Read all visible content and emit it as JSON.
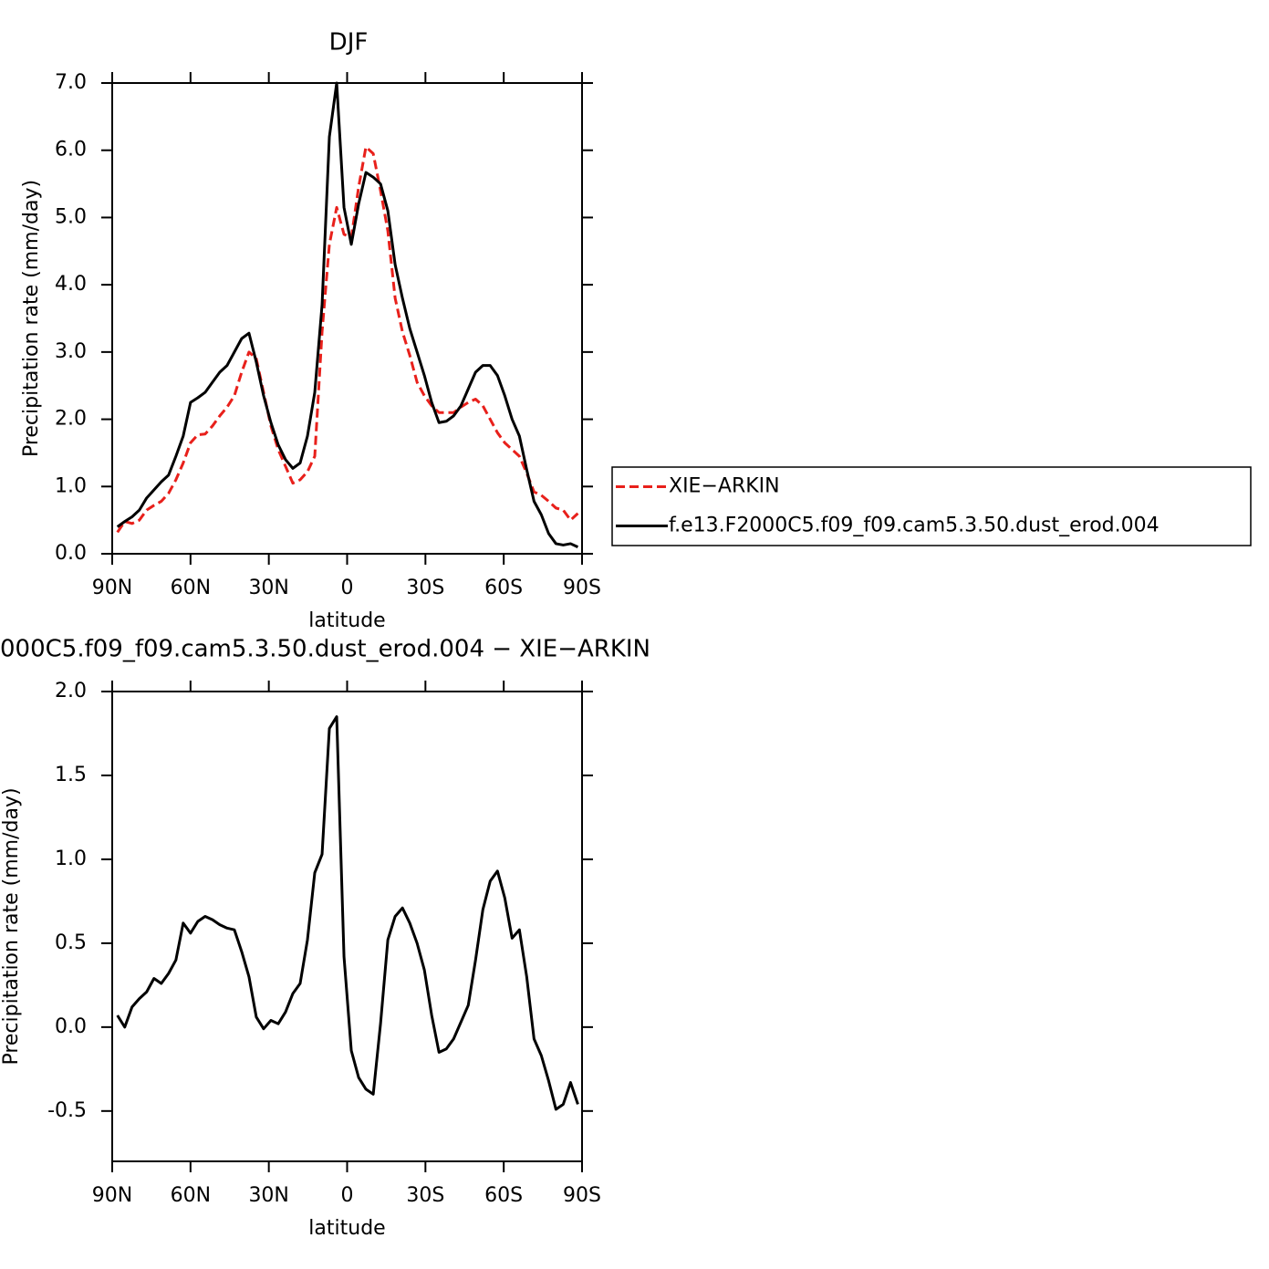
{
  "chart_data": [
    {
      "type": "line",
      "title": "DJF",
      "xlabel": "latitude",
      "ylabel": "Precipitation rate (mm/day)",
      "x": [
        88,
        85.2,
        82.4,
        79.6,
        76.8,
        74,
        71.2,
        68.4,
        65.6,
        62.8,
        60,
        57.2,
        54.4,
        51.6,
        48.8,
        46,
        43.2,
        40.4,
        37.6,
        34.8,
        32,
        29.2,
        26.4,
        23.6,
        20.8,
        18,
        15.2,
        12.4,
        9.6,
        6.8,
        4,
        1.2,
        -1.6,
        -4.4,
        -7.2,
        -10,
        -12.8,
        -15.6,
        -18.4,
        -21.2,
        -24,
        -26.8,
        -29.6,
        -32.4,
        -35.2,
        -38,
        -40.8,
        -43.6,
        -46.4,
        -49.2,
        -52,
        -54.8,
        -57.6,
        -60.4,
        -63.2,
        -66,
        -68.8,
        -71.6,
        -74.4,
        -77.2,
        -80,
        -82.8,
        -85.6,
        -88.4
      ],
      "xlim": [
        90,
        -90
      ],
      "xticks": [
        {
          "value": 90,
          "label": "90N"
        },
        {
          "value": 60,
          "label": "60N"
        },
        {
          "value": 30,
          "label": "30N"
        },
        0,
        {
          "value": -30,
          "label": "30S"
        },
        {
          "value": -60,
          "label": "60S"
        },
        {
          "value": -90,
          "label": "90S"
        }
      ],
      "ylim": [
        0,
        7
      ],
      "yticks": [
        {
          "value": 0,
          "label": "0.0"
        },
        {
          "value": 1,
          "label": "1.0"
        },
        {
          "value": 2,
          "label": "2.0"
        },
        {
          "value": 3,
          "label": "3.0"
        },
        {
          "value": 4,
          "label": "4.0"
        },
        {
          "value": 5,
          "label": "5.0"
        },
        {
          "value": 6,
          "label": "6.0"
        },
        {
          "value": 7,
          "label": "7.0"
        }
      ],
      "legend": "right",
      "series": [
        {
          "name": "XIE−ARKIN",
          "color": "#e8201b",
          "linestyle": "dashed",
          "values": [
            0.32,
            0.48,
            0.45,
            0.5,
            0.65,
            0.72,
            0.78,
            0.9,
            1.1,
            1.35,
            1.65,
            1.77,
            1.78,
            1.9,
            2.05,
            2.18,
            2.35,
            2.7,
            3.0,
            2.9,
            2.4,
            1.9,
            1.55,
            1.3,
            1.05,
            1.1,
            1.22,
            1.45,
            3.3,
            4.6,
            5.15,
            4.75,
            4.7,
            5.45,
            6.05,
            5.95,
            5.4,
            4.8,
            3.8,
            3.3,
            2.95,
            2.55,
            2.35,
            2.2,
            2.1,
            2.1,
            2.1,
            2.18,
            2.25,
            2.3,
            2.2,
            2.0,
            1.8,
            1.65,
            1.55,
            1.45,
            1.2,
            0.92,
            0.87,
            0.78,
            0.68,
            0.65,
            0.5,
            0.6
          ]
        },
        {
          "name": "f.e13.F2000C5.f09_f09.cam5.3.50.dust_erod.004",
          "color": "#000000",
          "linestyle": "solid",
          "values": [
            0.4,
            0.48,
            0.55,
            0.65,
            0.83,
            0.95,
            1.07,
            1.17,
            1.45,
            1.75,
            2.25,
            2.32,
            2.4,
            2.55,
            2.7,
            2.8,
            3.0,
            3.2,
            3.28,
            2.85,
            2.35,
            1.95,
            1.62,
            1.4,
            1.27,
            1.35,
            1.75,
            2.4,
            3.7,
            6.2,
            7.0,
            5.15,
            4.6,
            5.2,
            5.67,
            5.6,
            5.5,
            5.1,
            4.3,
            3.8,
            3.35,
            3.0,
            2.65,
            2.25,
            1.95,
            1.97,
            2.05,
            2.2,
            2.45,
            2.7,
            2.8,
            2.8,
            2.65,
            2.35,
            2.0,
            1.75,
            1.25,
            0.78,
            0.58,
            0.3,
            0.15,
            0.13,
            0.15,
            0.1
          ]
        }
      ]
    },
    {
      "type": "line",
      "title": "000C5.f09_f09.cam5.3.50.dust_erod.004 − XIE−ARKIN",
      "xlabel": "latitude",
      "ylabel": "Precipitation rate (mm/day)",
      "x": [
        88,
        85.2,
        82.4,
        79.6,
        76.8,
        74,
        71.2,
        68.4,
        65.6,
        62.8,
        60,
        57.2,
        54.4,
        51.6,
        48.8,
        46,
        43.2,
        40.4,
        37.6,
        34.8,
        32,
        29.2,
        26.4,
        23.6,
        20.8,
        18,
        15.2,
        12.4,
        9.6,
        6.8,
        4,
        1.2,
        -1.6,
        -4.4,
        -7.2,
        -10,
        -12.8,
        -15.6,
        -18.4,
        -21.2,
        -24,
        -26.8,
        -29.6,
        -32.4,
        -35.2,
        -38,
        -40.8,
        -43.6,
        -46.4,
        -49.2,
        -52,
        -54.8,
        -57.6,
        -60.4,
        -63.2,
        -66,
        -68.8,
        -71.6,
        -74.4,
        -77.2,
        -80,
        -82.8,
        -85.6,
        -88.4
      ],
      "xlim": [
        90,
        -90
      ],
      "xticks": [
        {
          "value": 90,
          "label": "90N"
        },
        {
          "value": 60,
          "label": "60N"
        },
        {
          "value": 30,
          "label": "30N"
        },
        0,
        {
          "value": -30,
          "label": "30S"
        },
        {
          "value": -60,
          "label": "60S"
        },
        {
          "value": -90,
          "label": "90S"
        }
      ],
      "ylim": [
        -0.8,
        2.0
      ],
      "yticks": [
        -0.5,
        {
          "value": 0,
          "label": "0.0"
        },
        0.5,
        {
          "value": 1,
          "label": "1.0"
        },
        1.5,
        {
          "value": 2,
          "label": "2.0"
        }
      ],
      "series": [
        {
          "color": "#000000",
          "linestyle": "solid",
          "values": [
            0.07,
            0.0,
            0.12,
            0.17,
            0.21,
            0.29,
            0.26,
            0.32,
            0.4,
            0.62,
            0.56,
            0.63,
            0.66,
            0.64,
            0.61,
            0.59,
            0.58,
            0.45,
            0.3,
            0.06,
            -0.01,
            0.04,
            0.02,
            0.09,
            0.2,
            0.26,
            0.52,
            0.92,
            1.03,
            1.78,
            1.85,
            0.42,
            -0.14,
            -0.3,
            -0.37,
            -0.4,
            0.02,
            0.52,
            0.66,
            0.71,
            0.62,
            0.5,
            0.34,
            0.07,
            -0.15,
            -0.13,
            -0.07,
            0.03,
            0.13,
            0.4,
            0.7,
            0.87,
            0.93,
            0.77,
            0.53,
            0.58,
            0.3,
            -0.07,
            -0.17,
            -0.32,
            -0.49,
            -0.46,
            -0.33,
            -0.46
          ]
        }
      ]
    }
  ]
}
